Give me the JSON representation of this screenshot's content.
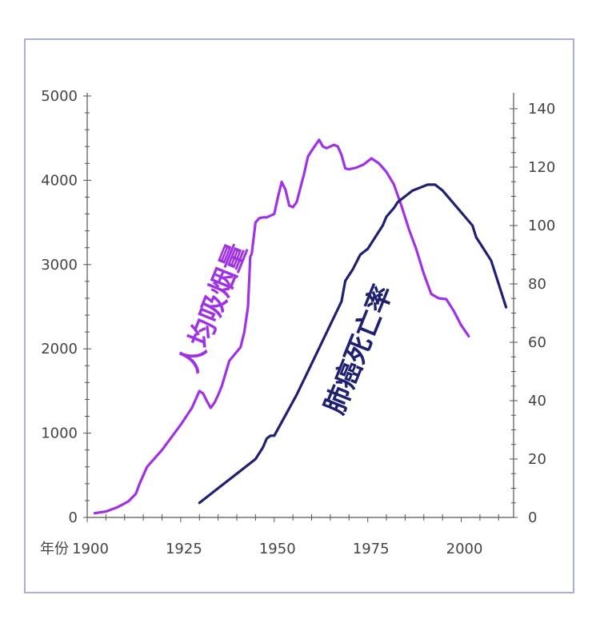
{
  "chart_data": {
    "type": "line",
    "title": "",
    "xlabel": "年份",
    "xlim": [
      1900,
      2014
    ],
    "x_ticks": [
      1900,
      1925,
      1950,
      1975,
      2000
    ],
    "y_left": {
      "ylim": [
        0,
        5000
      ],
      "ticks": [
        0,
        1000,
        2000,
        3000,
        4000,
        5000
      ]
    },
    "y_right": {
      "ylim": [
        0,
        140
      ],
      "ticks": [
        0,
        20,
        40,
        60,
        80,
        100,
        120,
        140
      ]
    },
    "grid": false,
    "legend": "none",
    "series": [
      {
        "name": "人均吸烟量",
        "axis": "left",
        "color": "#a032e6",
        "x": [
          1902,
          1905,
          1908,
          1911,
          1913,
          1914,
          1916,
          1920,
          1925,
          1928,
          1930,
          1931,
          1932,
          1933,
          1934,
          1935,
          1936,
          1938,
          1941,
          1942,
          1943,
          1943.6,
          1944,
          1945,
          1946,
          1947,
          1948,
          1949,
          1950,
          1951,
          1952,
          1953,
          1954,
          1955,
          1956,
          1958,
          1959,
          1960,
          1962,
          1963,
          1964,
          1966,
          1967,
          1968,
          1969,
          1970,
          1972,
          1974,
          1976,
          1978,
          1980,
          1982,
          1984,
          1986,
          1988,
          1990,
          1992,
          1994,
          1996,
          1998,
          2000,
          2002
        ],
        "values": [
          50,
          70,
          120,
          190,
          280,
          400,
          600,
          800,
          1100,
          1300,
          1500,
          1470,
          1380,
          1300,
          1360,
          1450,
          1560,
          1860,
          2020,
          2200,
          2500,
          3090,
          3130,
          3500,
          3550,
          3560,
          3560,
          3580,
          3600,
          3800,
          3980,
          3890,
          3700,
          3680,
          3740,
          4080,
          4280,
          4350,
          4480,
          4400,
          4380,
          4420,
          4400,
          4300,
          4140,
          4130,
          4150,
          4190,
          4260,
          4200,
          4100,
          3950,
          3700,
          3420,
          3180,
          2890,
          2650,
          2600,
          2590,
          2450,
          2280,
          2150
        ]
      },
      {
        "name": "肺癌死亡率",
        "axis": "right",
        "color": "#1f2170",
        "x": [
          1930,
          1935,
          1940,
          1945,
          1947,
          1948,
          1949,
          1950,
          1953,
          1956,
          1959,
          1962,
          1965,
          1968,
          1969,
          1971,
          1973,
          1974,
          1975,
          1977,
          1979,
          1980,
          1982,
          1983,
          1985,
          1987,
          1989,
          1991,
          1993,
          1995,
          1997,
          1999,
          2001,
          2003,
          2004,
          2006,
          2008,
          2010,
          2012
        ],
        "values": [
          5,
          10,
          15,
          20,
          24,
          27,
          28,
          28,
          35,
          42,
          50,
          58,
          66,
          74,
          81,
          85,
          90,
          91,
          92,
          96,
          100,
          103,
          106,
          108,
          110,
          112,
          113,
          114,
          114,
          112,
          109,
          106,
          103,
          100,
          96,
          92,
          88,
          80,
          72
        ]
      }
    ],
    "annotations": [
      {
        "text": "人均吸烟量",
        "color": "#a032e6"
      },
      {
        "text": "肺癌死亡率",
        "color": "#1f2170"
      }
    ]
  }
}
